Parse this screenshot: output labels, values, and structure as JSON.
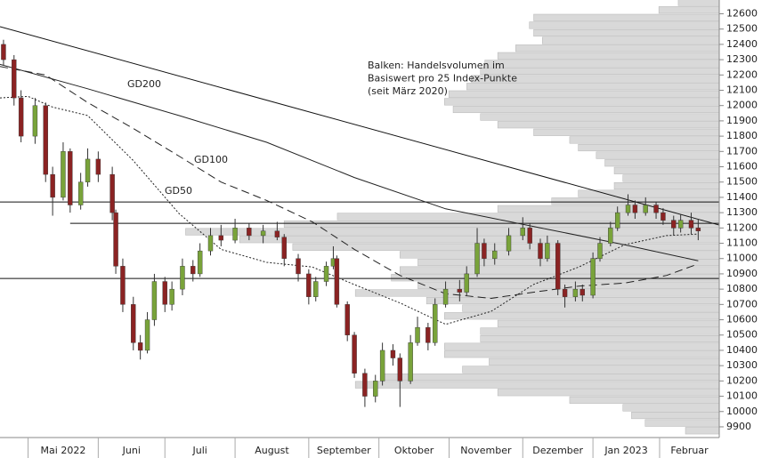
{
  "chart_data": {
    "type": "candlestick",
    "annotation": [
      "Balken: Handelsvolumen im",
      "Basiswert pro 25 Index-Punkte",
      "(seit März 2020)"
    ],
    "xlim": [
      0,
      205
    ],
    "xticks": [
      8,
      28,
      47,
      67,
      88,
      108,
      128,
      149,
      169,
      188
    ],
    "x_labels": [
      "Mai 2022",
      "Juni",
      "Juli",
      "August",
      "September",
      "Oktober",
      "November",
      "Dezember",
      "Jan 2023",
      "Februar"
    ],
    "ylim": [
      9830,
      12690
    ],
    "yticks": [
      9900,
      10000,
      10100,
      10200,
      10300,
      10400,
      10500,
      10600,
      10700,
      10800,
      10900,
      11000,
      11100,
      11200,
      11300,
      11400,
      11500,
      11600,
      11700,
      11800,
      11900,
      12000,
      12100,
      12200,
      12300,
      12400,
      12500,
      12600
    ],
    "volume_profile": {
      "color": "#d9d9d9",
      "xlim": [
        0,
        1000
      ],
      "levels": [
        9850,
        9900,
        9950,
        10000,
        10050,
        10100,
        10150,
        10200,
        10250,
        10300,
        10350,
        10400,
        10450,
        10500,
        10550,
        10600,
        10650,
        10700,
        10750,
        10800,
        10850,
        10900,
        10950,
        11000,
        11050,
        11100,
        11150,
        11200,
        11250,
        11300,
        11350,
        11400,
        11450,
        11500,
        11550,
        11600,
        11650,
        11700,
        11750,
        11800,
        11850,
        11900,
        11950,
        12000,
        12050,
        12100,
        12150,
        12200,
        12250,
        12300,
        12350,
        12400,
        12450,
        12500,
        12550,
        12600,
        12650
      ],
      "values": [
        47,
        103,
        122,
        134,
        208,
        308,
        506,
        469,
        357,
        320,
        382,
        382,
        332,
        332,
        308,
        382,
        357,
        407,
        506,
        419,
        456,
        444,
        419,
        444,
        593,
        667,
        742,
        605,
        531,
        308,
        233,
        196,
        146,
        134,
        146,
        159,
        171,
        196,
        208,
        258,
        308,
        332,
        370,
        382,
        376,
        351,
        345,
        332,
        326,
        308,
        283,
        246,
        258,
        264,
        258,
        84,
        57
      ]
    },
    "lines": [
      {
        "x": [
          0,
          205
        ],
        "values": [
          12516,
          11219
        ]
      },
      {
        "x": [
          0,
          205
        ],
        "values": [
          11370,
          11370
        ]
      },
      {
        "x": [
          20,
          205
        ],
        "values": [
          11230,
          11230
        ]
      },
      {
        "x": [
          0,
          205
        ],
        "values": [
          10870,
          10870
        ]
      }
    ],
    "series": [
      {
        "name": "GD200",
        "style": "solid",
        "color": "#222222",
        "x": [
          0,
          25,
          51,
          76,
          101,
          127,
          152,
          178,
          199
        ],
        "values": [
          12270,
          12110,
          11935,
          11760,
          11530,
          11325,
          11210,
          11090,
          10985
        ]
      },
      {
        "name": "GD100",
        "style": "dashed",
        "color": "#222222",
        "x": [
          0,
          13,
          25,
          38,
          51,
          63,
          76,
          89,
          101,
          114,
          127,
          140,
          152,
          165,
          178,
          190,
          199
        ],
        "values": [
          12255,
          12200,
          12020,
          11850,
          11670,
          11500,
          11380,
          11240,
          11060,
          10890,
          10770,
          10740,
          10780,
          10820,
          10840,
          10890,
          10965
        ]
      },
      {
        "name": "GD50",
        "style": "dotted",
        "color": "#222222",
        "x": [
          0,
          8,
          15,
          25,
          38,
          51,
          63,
          76,
          89,
          101,
          114,
          127,
          140,
          152,
          165,
          178,
          190,
          199
        ],
        "values": [
          12050,
          12060,
          11990,
          11935,
          11640,
          11295,
          11060,
          10975,
          10945,
          10830,
          10710,
          10570,
          10655,
          10830,
          10945,
          11090,
          11150,
          11160
        ]
      }
    ],
    "candles": {
      "up_color": "#79a33a",
      "down_color": "#8b2323",
      "x": [
        1,
        4,
        6,
        10,
        13,
        15,
        18,
        20,
        23,
        25,
        28,
        32,
        33,
        35,
        38,
        40,
        42,
        44,
        47,
        49,
        52,
        55,
        57,
        60,
        63,
        67,
        71,
        75,
        79,
        81,
        85,
        88,
        90,
        93,
        95,
        96,
        99,
        101,
        104,
        107,
        109,
        112,
        114,
        117,
        119,
        122,
        124,
        127,
        131,
        133,
        136,
        138,
        141,
        145,
        149,
        151,
        154,
        156,
        159,
        161,
        164,
        166,
        169,
        171,
        174,
        176,
        179,
        181,
        184,
        187,
        189,
        192,
        194,
        197,
        199
      ],
      "ohlc": [
        [
          12400,
          12430,
          12260,
          12300
        ],
        [
          12300,
          12330,
          12000,
          12050
        ],
        [
          12050,
          12100,
          11760,
          11800
        ],
        [
          11800,
          12050,
          11750,
          12000
        ],
        [
          12000,
          12020,
          11500,
          11550
        ],
        [
          11550,
          11600,
          11280,
          11400
        ],
        [
          11400,
          11760,
          11380,
          11700
        ],
        [
          11700,
          11720,
          11300,
          11350
        ],
        [
          11350,
          11560,
          11320,
          11500
        ],
        [
          11500,
          11720,
          11470,
          11650
        ],
        [
          11650,
          11700,
          11500,
          11550
        ],
        [
          11550,
          11600,
          11250,
          11300
        ],
        [
          11300,
          11320,
          10900,
          10950
        ],
        [
          10950,
          11000,
          10650,
          10700
        ],
        [
          10700,
          10750,
          10400,
          10450
        ],
        [
          10450,
          10500,
          10340,
          10400
        ],
        [
          10400,
          10650,
          10380,
          10600
        ],
        [
          10600,
          10900,
          10560,
          10850
        ],
        [
          10850,
          10880,
          10650,
          10700
        ],
        [
          10700,
          10850,
          10660,
          10800
        ],
        [
          10800,
          11000,
          10760,
          10950
        ],
        [
          10950,
          10990,
          10850,
          10900
        ],
        [
          10900,
          11100,
          10880,
          11050
        ],
        [
          11050,
          11200,
          11020,
          11150
        ],
        [
          11150,
          11220,
          11080,
          11120
        ],
        [
          11120,
          11260,
          11100,
          11200
        ],
        [
          11200,
          11230,
          11120,
          11150
        ],
        [
          11150,
          11220,
          11100,
          11180
        ],
        [
          11180,
          11240,
          11120,
          11140
        ],
        [
          11140,
          11160,
          10950,
          11000
        ],
        [
          11000,
          11030,
          10850,
          10900
        ],
        [
          10900,
          10930,
          10700,
          10750
        ],
        [
          10750,
          10880,
          10720,
          10850
        ],
        [
          10850,
          10980,
          10820,
          10950
        ],
        [
          10950,
          11080,
          10930,
          11000
        ],
        [
          11000,
          11020,
          10680,
          10700
        ],
        [
          10700,
          10720,
          10460,
          10500
        ],
        [
          10500,
          10520,
          10220,
          10250
        ],
        [
          10250,
          10280,
          10030,
          10100
        ],
        [
          10100,
          10240,
          10060,
          10200
        ],
        [
          10200,
          10450,
          10170,
          10400
        ],
        [
          10400,
          10440,
          10300,
          10350
        ],
        [
          10350,
          10380,
          10030,
          10200
        ],
        [
          10200,
          10500,
          10180,
          10450
        ],
        [
          10450,
          10620,
          10430,
          10550
        ],
        [
          10550,
          10580,
          10400,
          10450
        ],
        [
          10450,
          10740,
          10430,
          10700
        ],
        [
          10700,
          10850,
          10680,
          10800
        ],
        [
          10800,
          10860,
          10720,
          10780
        ],
        [
          10780,
          10950,
          10760,
          10900
        ],
        [
          10900,
          11200,
          10880,
          11100
        ],
        [
          11100,
          11130,
          10950,
          11000
        ],
        [
          11000,
          11100,
          10960,
          11050
        ],
        [
          11050,
          11200,
          11020,
          11150
        ],
        [
          11150,
          11270,
          11120,
          11200
        ],
        [
          11200,
          11230,
          11060,
          11100
        ],
        [
          11100,
          11130,
          10950,
          11000
        ],
        [
          11000,
          11150,
          10980,
          11100
        ],
        [
          11100,
          11120,
          10760,
          10800
        ],
        [
          10800,
          10830,
          10680,
          10750
        ],
        [
          10750,
          10850,
          10720,
          10800
        ],
        [
          10800,
          10830,
          10720,
          10760
        ],
        [
          10760,
          11040,
          10740,
          11000
        ],
        [
          11000,
          11140,
          10980,
          11100
        ],
        [
          11100,
          11240,
          11080,
          11200
        ],
        [
          11200,
          11340,
          11180,
          11300
        ],
        [
          11300,
          11420,
          11280,
          11350
        ],
        [
          11350,
          11380,
          11260,
          11300
        ],
        [
          11300,
          11400,
          11280,
          11350
        ],
        [
          11350,
          11370,
          11260,
          11300
        ],
        [
          11300,
          11330,
          11220,
          11250
        ],
        [
          11250,
          11280,
          11150,
          11200
        ],
        [
          11200,
          11290,
          11170,
          11250
        ],
        [
          11250,
          11300,
          11160,
          11200
        ],
        [
          11200,
          11260,
          11120,
          11180
        ]
      ]
    }
  }
}
